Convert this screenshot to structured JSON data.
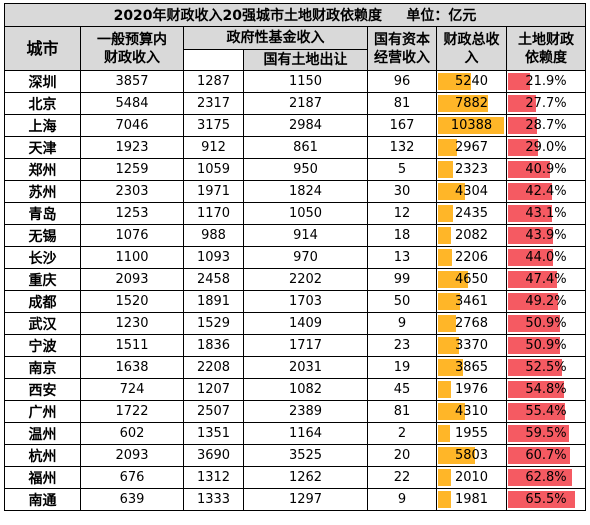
{
  "title": "2020年财政收入20强城市土地财政依赖度",
  "unit": "单位：亿元",
  "headers": {
    "city": "城市",
    "general_budget": "一般预算内财政收入",
    "gov_fund": "政府性基金收入",
    "land_transfer": "国有土地出让",
    "state_capital": "国有资本经营收入",
    "total": "财政总收入",
    "dependence": "土地财政依赖度"
  },
  "colors": {
    "header_bg": "#d9d9d9",
    "total_bar": "#ffb628",
    "dependence_bar": "#f55a62"
  },
  "rows": [
    {
      "city": "深圳",
      "general": "3857",
      "fund": "1287",
      "land": "1150",
      "capital": "96",
      "total": "5240",
      "total_value": 5240,
      "dep": "21.9%",
      "dep_value": 21.9
    },
    {
      "city": "北京",
      "general": "5484",
      "fund": "2317",
      "land": "2187",
      "capital": "81",
      "total": "7882",
      "total_value": 7882,
      "dep": "27.7%",
      "dep_value": 27.7
    },
    {
      "city": "上海",
      "general": "7046",
      "fund": "3175",
      "land": "2984",
      "capital": "167",
      "total": "10388",
      "total_value": 10388,
      "dep": "28.7%",
      "dep_value": 28.7
    },
    {
      "city": "天津",
      "general": "1923",
      "fund": "912",
      "land": "861",
      "capital": "132",
      "total": "2967",
      "total_value": 2967,
      "dep": "29.0%",
      "dep_value": 29.0
    },
    {
      "city": "郑州",
      "general": "1259",
      "fund": "1059",
      "land": "950",
      "capital": "5",
      "total": "2323",
      "total_value": 2323,
      "dep": "40.9%",
      "dep_value": 40.9
    },
    {
      "city": "苏州",
      "general": "2303",
      "fund": "1971",
      "land": "1824",
      "capital": "30",
      "total": "4304",
      "total_value": 4304,
      "dep": "42.4%",
      "dep_value": 42.4
    },
    {
      "city": "青岛",
      "general": "1253",
      "fund": "1170",
      "land": "1050",
      "capital": "12",
      "total": "2435",
      "total_value": 2435,
      "dep": "43.1%",
      "dep_value": 43.1
    },
    {
      "city": "无锡",
      "general": "1076",
      "fund": "988",
      "land": "914",
      "capital": "18",
      "total": "2082",
      "total_value": 2082,
      "dep": "43.9%",
      "dep_value": 43.9
    },
    {
      "city": "长沙",
      "general": "1100",
      "fund": "1093",
      "land": "970",
      "capital": "13",
      "total": "2206",
      "total_value": 2206,
      "dep": "44.0%",
      "dep_value": 44.0
    },
    {
      "city": "重庆",
      "general": "2093",
      "fund": "2458",
      "land": "2202",
      "capital": "99",
      "total": "4650",
      "total_value": 4650,
      "dep": "47.4%",
      "dep_value": 47.4
    },
    {
      "city": "成都",
      "general": "1520",
      "fund": "1891",
      "land": "1703",
      "capital": "50",
      "total": "3461",
      "total_value": 3461,
      "dep": "49.2%",
      "dep_value": 49.2
    },
    {
      "city": "武汉",
      "general": "1230",
      "fund": "1529",
      "land": "1409",
      "capital": "9",
      "total": "2768",
      "total_value": 2768,
      "dep": "50.9%",
      "dep_value": 50.9
    },
    {
      "city": "宁波",
      "general": "1511",
      "fund": "1836",
      "land": "1717",
      "capital": "23",
      "total": "3370",
      "total_value": 3370,
      "dep": "50.9%",
      "dep_value": 50.9
    },
    {
      "city": "南京",
      "general": "1638",
      "fund": "2208",
      "land": "2031",
      "capital": "19",
      "total": "3865",
      "total_value": 3865,
      "dep": "52.5%",
      "dep_value": 52.5
    },
    {
      "city": "西安",
      "general": "724",
      "fund": "1207",
      "land": "1082",
      "capital": "45",
      "total": "1976",
      "total_value": 1976,
      "dep": "54.8%",
      "dep_value": 54.8
    },
    {
      "city": "广州",
      "general": "1722",
      "fund": "2507",
      "land": "2389",
      "capital": "81",
      "total": "4310",
      "total_value": 4310,
      "dep": "55.4%",
      "dep_value": 55.4
    },
    {
      "city": "温州",
      "general": "602",
      "fund": "1351",
      "land": "1164",
      "capital": "2",
      "total": "1955",
      "total_value": 1955,
      "dep": "59.5%",
      "dep_value": 59.5
    },
    {
      "city": "杭州",
      "general": "2093",
      "fund": "3690",
      "land": "3525",
      "capital": "20",
      "total": "5803",
      "total_value": 5803,
      "dep": "60.7%",
      "dep_value": 60.7
    },
    {
      "city": "福州",
      "general": "676",
      "fund": "1312",
      "land": "1262",
      "capital": "22",
      "total": "2010",
      "total_value": 2010,
      "dep": "62.8%",
      "dep_value": 62.8
    },
    {
      "city": "南通",
      "general": "639",
      "fund": "1333",
      "land": "1297",
      "capital": "9",
      "total": "1981",
      "total_value": 1981,
      "dep": "65.5%",
      "dep_value": 65.5
    }
  ]
}
